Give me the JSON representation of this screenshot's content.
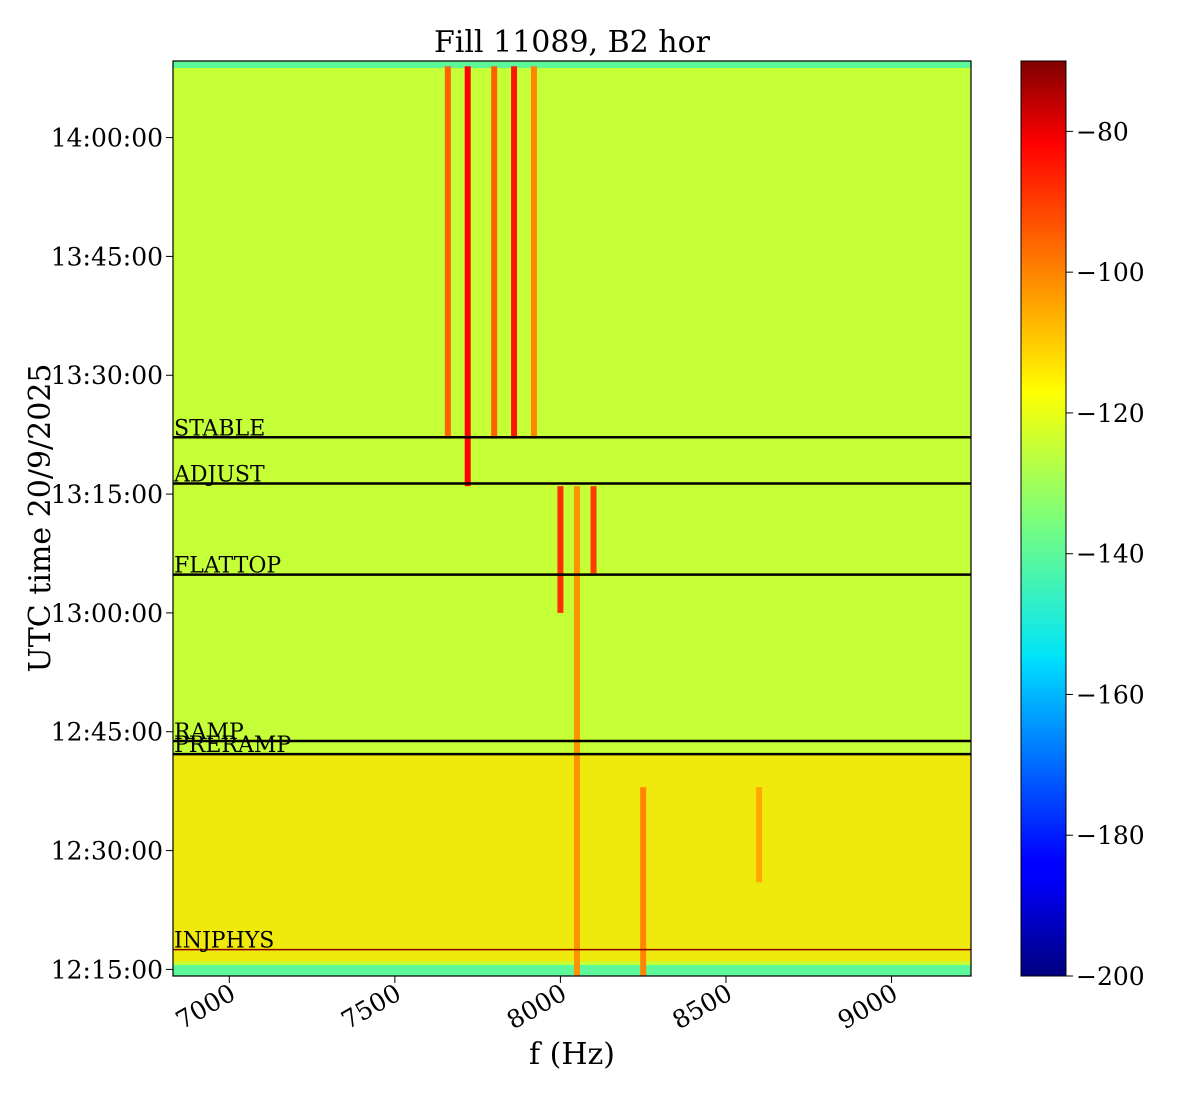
{
  "chart_data": {
    "type": "heatmap",
    "title": "Fill 11089, B2 hor",
    "xlabel": "f (Hz)",
    "ylabel": "UTC time 20/9/2025",
    "xlim": [
      6830,
      9240
    ],
    "ylim": [
      "12:14:10",
      "14:09:40"
    ],
    "x_ticks": [
      7000,
      7500,
      8000,
      8500,
      9000
    ],
    "y_ticks": [
      "12:15:00",
      "12:30:00",
      "12:45:00",
      "13:00:00",
      "13:15:00",
      "13:30:00",
      "13:45:00",
      "14:00:00"
    ],
    "colorbar": {
      "range": [
        -200,
        -70
      ],
      "ticks": [
        -80,
        -100,
        -120,
        -140,
        -160,
        -180,
        -200
      ],
      "tick_labels": [
        "−80",
        "−100",
        "−120",
        "−140",
        "−160",
        "−180",
        "−200"
      ],
      "colormap": "jet"
    },
    "background_level": -125,
    "beam_modes": [
      {
        "label": "STABLE",
        "time": "13:22:10",
        "color": "#000000"
      },
      {
        "label": "ADJUST",
        "time": "13:16:20",
        "color": "#000000"
      },
      {
        "label": "FLATTOP",
        "time": "13:04:50",
        "color": "#000000"
      },
      {
        "label": "RAMP",
        "time": "12:43:50",
        "color": "#000000"
      },
      {
        "label": "PRERAMP",
        "time": "12:42:10",
        "color": "#000000"
      },
      {
        "label": "INJPHYS",
        "time": "12:17:30",
        "color": "#8b0000"
      }
    ],
    "spectral_lines": [
      {
        "freq": 7720,
        "start": "13:16:00",
        "end": "14:09:00",
        "level": -82
      },
      {
        "freq": 7860,
        "start": "13:22:00",
        "end": "14:09:00",
        "level": -85
      },
      {
        "freq": 7660,
        "start": "13:22:00",
        "end": "14:09:00",
        "level": -95
      },
      {
        "freq": 7800,
        "start": "13:22:00",
        "end": "14:09:00",
        "level": -95
      },
      {
        "freq": 7920,
        "start": "13:22:00",
        "end": "14:09:00",
        "level": -100
      },
      {
        "freq": 8000,
        "start": "13:00:00",
        "end": "13:16:00",
        "level": -88
      },
      {
        "freq": 8100,
        "start": "13:05:00",
        "end": "13:16:00",
        "level": -90
      },
      {
        "freq": 8050,
        "start": "12:14:00",
        "end": "13:16:00",
        "level": -102
      },
      {
        "freq": 8250,
        "start": "12:14:00",
        "end": "12:38:00",
        "level": -100
      },
      {
        "freq": 8600,
        "start": "12:26:00",
        "end": "12:38:00",
        "level": -105
      }
    ]
  }
}
